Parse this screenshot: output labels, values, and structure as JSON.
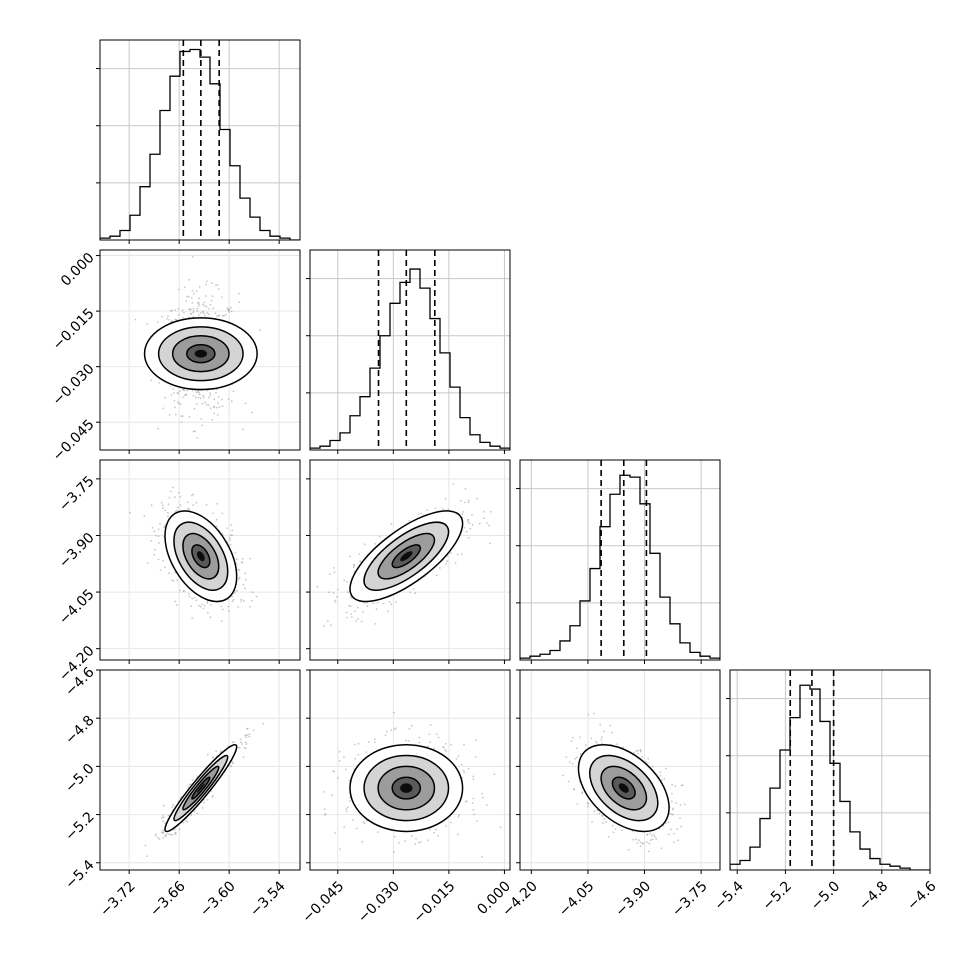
{
  "chart_data": {
    "type": "corner",
    "grid": true,
    "quantiles": [
      0.16,
      0.5,
      0.84
    ],
    "parameters": [
      {
        "ticks": [
          -3.72,
          -3.66,
          -3.6,
          -3.54
        ],
        "tick_labels": [
          "−3.72",
          "−3.66",
          "−3.60",
          "−3.54"
        ],
        "range": [
          -3.755,
          -3.515
        ],
        "median": -3.634,
        "q16": -3.655,
        "q84": -3.612
      },
      {
        "ticks": [
          -0.045,
          -0.03,
          -0.015,
          0.0
        ],
        "tick_labels": [
          "−0.045",
          "−0.030",
          "−0.015",
          "0.000"
        ],
        "range": [
          -0.0525,
          0.0015
        ],
        "median": -0.0265,
        "q16": -0.034,
        "q84": -0.0188
      },
      {
        "ticks": [
          -4.2,
          -4.05,
          -3.9,
          -3.75
        ],
        "tick_labels": [
          "−4.20",
          "−4.05",
          "−3.90",
          "−3.75"
        ],
        "range": [
          -4.23,
          -3.7
        ],
        "median": -3.955,
        "q16": -4.015,
        "q84": -3.895
      },
      {
        "ticks": [
          -5.4,
          -5.2,
          -5.0,
          -4.8,
          -4.6
        ],
        "tick_labels": [
          "−5.4",
          "−5.2",
          "−5.0",
          "−4.8",
          "−4.6"
        ],
        "range": [
          -5.43,
          -4.6
        ],
        "median": -5.09,
        "q16": -5.18,
        "q84": -5.0
      }
    ],
    "histograms": [
      [
        0.01,
        0.02,
        0.05,
        0.13,
        0.28,
        0.45,
        0.68,
        0.86,
        0.99,
        1.0,
        0.96,
        0.82,
        0.58,
        0.39,
        0.22,
        0.12,
        0.05,
        0.02,
        0.01,
        0.0
      ],
      [
        0.01,
        0.02,
        0.05,
        0.09,
        0.18,
        0.28,
        0.43,
        0.6,
        0.77,
        0.88,
        0.95,
        0.85,
        0.69,
        0.51,
        0.33,
        0.17,
        0.08,
        0.04,
        0.02,
        0.01
      ],
      [
        0.01,
        0.02,
        0.03,
        0.05,
        0.1,
        0.18,
        0.31,
        0.48,
        0.7,
        0.87,
        0.97,
        0.96,
        0.82,
        0.56,
        0.33,
        0.19,
        0.09,
        0.04,
        0.02,
        0.01
      ],
      [
        0.03,
        0.05,
        0.12,
        0.27,
        0.43,
        0.63,
        0.8,
        0.97,
        0.95,
        0.78,
        0.56,
        0.36,
        0.2,
        0.11,
        0.06,
        0.03,
        0.02,
        0.01,
        0.0,
        0.0
      ]
    ],
    "pairs": [
      {
        "row": 1,
        "col": 0,
        "corr": 0.0
      },
      {
        "row": 2,
        "col": 0,
        "corr": -0.45
      },
      {
        "row": 2,
        "col": 1,
        "corr": 0.72
      },
      {
        "row": 3,
        "col": 0,
        "corr": 0.95
      },
      {
        "row": 3,
        "col": 1,
        "corr": 0.0
      },
      {
        "row": 3,
        "col": 2,
        "corr": -0.45
      }
    ]
  }
}
